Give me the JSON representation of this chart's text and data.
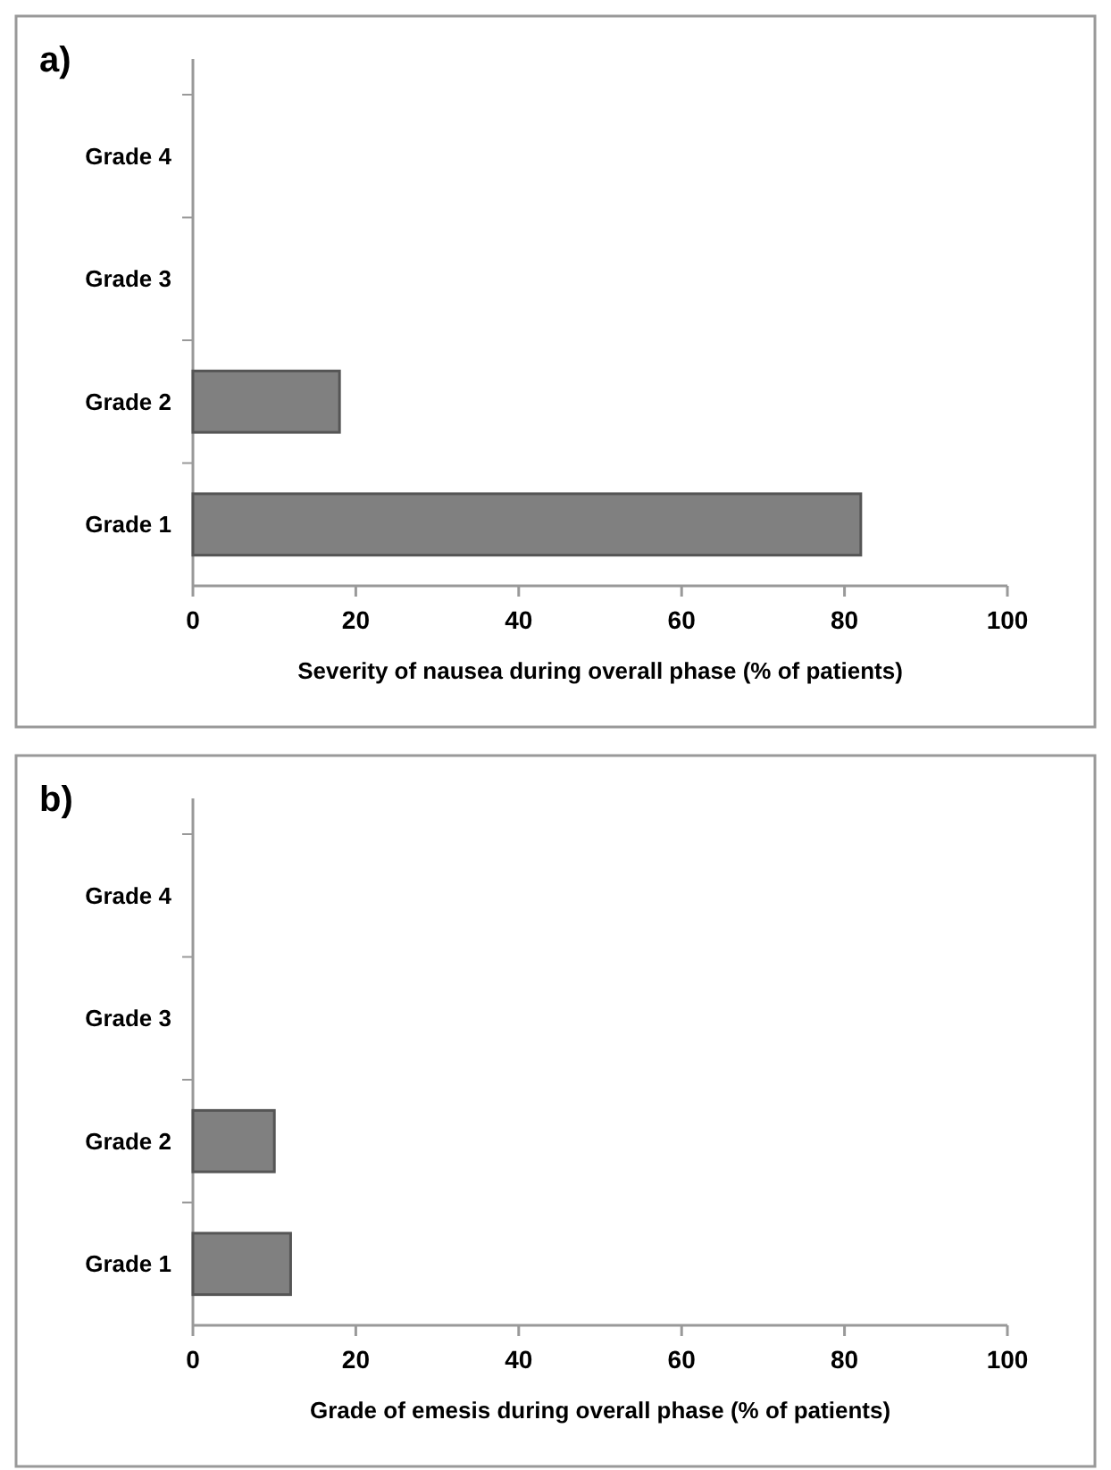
{
  "chart_data": [
    {
      "type": "bar",
      "orientation": "horizontal",
      "title": "a)",
      "xlabel": "Severity of nausea during overall phase (% of patients)",
      "categories": [
        "Grade 4",
        "Grade 3",
        "Grade 2",
        "Grade 1"
      ],
      "values": [
        0,
        0,
        18,
        82
      ],
      "color": "#808080",
      "xlim": [
        0,
        100
      ],
      "xticks": [
        0,
        20,
        40,
        60,
        80,
        100
      ]
    },
    {
      "type": "bar",
      "orientation": "horizontal",
      "title": "b)",
      "xlabel": "Grade of emesis during overall phase (% of patients)",
      "categories": [
        "Grade 4",
        "Grade 3",
        "Grade 2",
        "Grade 1"
      ],
      "values": [
        0,
        0,
        10,
        12
      ],
      "color": "#808080",
      "xlim": [
        0,
        100
      ],
      "xticks": [
        0,
        20,
        40,
        60,
        80,
        100
      ]
    }
  ]
}
